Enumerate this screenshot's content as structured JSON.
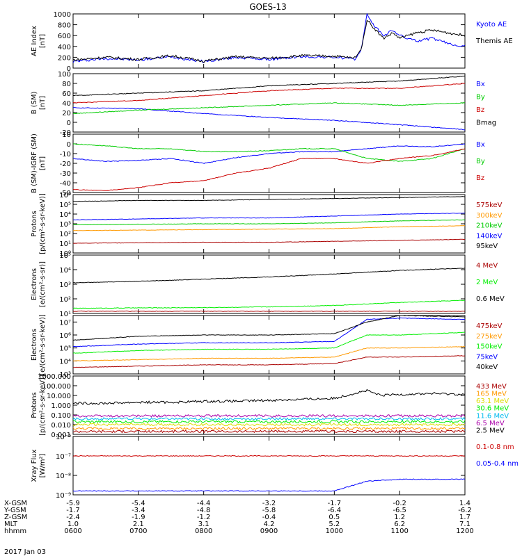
{
  "title": "GOES-13",
  "date_label": "2017 Jan 03",
  "colors": {
    "black": "#000000",
    "blue": "#0000ff",
    "green": "#00cc00",
    "red": "#cc0000",
    "orange": "#ff9900",
    "dark_red": "#aa0000",
    "yellow": "#dddd00",
    "cyan": "#00bbee",
    "light_green": "#00ee00",
    "purple": "#aa00aa"
  },
  "time_axis": {
    "row_labels": [
      "X-GSM",
      "Y-GSM",
      "Z-GSM",
      "MLT",
      "hhmm"
    ],
    "columns": [
      {
        "hhmm": "0600",
        "X-GSM": "-5.9",
        "Y-GSM": "-1.7",
        "Z-GSM": "-2.4",
        "MLT": "1.0"
      },
      {
        "hhmm": "0700",
        "X-GSM": "-5.4",
        "Y-GSM": "-3.4",
        "Z-GSM": "-1.9",
        "MLT": "2.1"
      },
      {
        "hhmm": "0800",
        "X-GSM": "-4.4",
        "Y-GSM": "-4.8",
        "Z-GSM": "-1.2",
        "MLT": "3.1"
      },
      {
        "hhmm": "0900",
        "X-GSM": "-3.2",
        "Y-GSM": "-5.8",
        "Z-GSM": "-0.4",
        "MLT": "4.2"
      },
      {
        "hhmm": "1000",
        "X-GSM": "-1.7",
        "Y-GSM": "-6.4",
        "Z-GSM": "0.5",
        "MLT": "5.2"
      },
      {
        "hhmm": "1100",
        "X-GSM": "-0.2",
        "Y-GSM": "-6.5",
        "Z-GSM": "1.2",
        "MLT": "6.2"
      },
      {
        "hhmm": "1200",
        "X-GSM": "1.4",
        "Y-GSM": "-6.2",
        "Z-GSM": "1.7",
        "MLT": "7.1"
      }
    ]
  },
  "chart_data": [
    {
      "type": "line",
      "id": "ae",
      "ylabel": "AE Index\n[nT]",
      "yscale": "linear",
      "ylim": [
        0,
        1000
      ],
      "yticks": [
        0,
        200,
        400,
        600,
        800,
        1000
      ],
      "ytick_labels": [
        "0",
        "200",
        "400",
        "600",
        "800",
        "1000"
      ],
      "series": [
        {
          "name": "Kyoto AE",
          "color": "blue",
          "x": [
            6.0,
            6.5,
            7.0,
            7.5,
            8.0,
            8.5,
            9.0,
            9.5,
            10.0,
            10.2,
            10.3,
            10.4,
            10.45,
            10.5,
            10.6,
            10.75,
            10.9,
            11.0,
            11.25,
            11.5,
            11.75,
            12.0
          ],
          "y": [
            120,
            180,
            150,
            210,
            120,
            200,
            160,
            210,
            200,
            180,
            150,
            300,
            600,
            1000,
            800,
            600,
            700,
            600,
            500,
            550,
            450,
            400
          ]
        },
        {
          "name": "Themis AE",
          "color": "black",
          "x": [
            6.0,
            6.5,
            7.0,
            7.5,
            8.0,
            8.5,
            9.0,
            9.5,
            10.0,
            10.2,
            10.3,
            10.4,
            10.45,
            10.5,
            10.6,
            10.75,
            10.9,
            11.0,
            11.25,
            11.5,
            11.75,
            12.0
          ],
          "y": [
            150,
            200,
            160,
            230,
            130,
            210,
            180,
            230,
            220,
            200,
            180,
            320,
            550,
            900,
            750,
            550,
            650,
            550,
            650,
            700,
            650,
            600
          ]
        }
      ]
    },
    {
      "type": "line",
      "id": "bsm",
      "ylabel": "B (SM)\n[nT]",
      "yscale": "linear",
      "ylim": [
        -20,
        100
      ],
      "yticks": [
        -20,
        0,
        20,
        40,
        60,
        80,
        100
      ],
      "ytick_labels": [
        "-20",
        "0",
        "20",
        "40",
        "60",
        "80",
        "100"
      ],
      "series": [
        {
          "name": "Bx",
          "color": "blue",
          "x": [
            6,
            7,
            8,
            9,
            10,
            11,
            12
          ],
          "y": [
            30,
            28,
            18,
            10,
            4,
            -5,
            -15
          ]
        },
        {
          "name": "By",
          "color": "green",
          "x": [
            6,
            7,
            8,
            9,
            10,
            11,
            12
          ],
          "y": [
            18,
            25,
            30,
            35,
            40,
            35,
            40
          ]
        },
        {
          "name": "Bz",
          "color": "red",
          "x": [
            6,
            7,
            8,
            9,
            10,
            11,
            12
          ],
          "y": [
            40,
            45,
            55,
            65,
            70,
            70,
            80
          ]
        },
        {
          "name": "Bmag",
          "color": "black",
          "x": [
            6,
            7,
            8,
            9,
            10,
            11,
            12
          ],
          "y": [
            55,
            60,
            65,
            75,
            80,
            85,
            95
          ]
        }
      ]
    },
    {
      "type": "line",
      "id": "bigrf",
      "ylabel": "B (SM)-IGRF (SM)\n[nT]",
      "yscale": "linear",
      "ylim": [
        -50,
        10
      ],
      "yticks": [
        -50,
        -40,
        -30,
        -20,
        -10,
        0,
        10
      ],
      "ytick_labels": [
        "-50",
        "-40",
        "-30",
        "-20",
        "-10",
        "0",
        "10"
      ],
      "series": [
        {
          "name": "Bx",
          "color": "blue",
          "x": [
            6,
            6.5,
            7,
            7.5,
            8,
            8.5,
            9,
            9.5,
            10,
            10.5,
            11,
            11.5,
            12
          ],
          "y": [
            -15,
            -18,
            -17,
            -15,
            -20,
            -14,
            -10,
            -8,
            -8,
            -5,
            -2,
            -3,
            0
          ]
        },
        {
          "name": "By",
          "color": "green",
          "x": [
            6,
            6.5,
            7,
            7.5,
            8,
            8.5,
            9,
            9.5,
            10,
            10.5,
            11,
            11.5,
            12
          ],
          "y": [
            0,
            -2,
            -5,
            -5,
            -8,
            -8,
            -7,
            -5,
            -5,
            -15,
            -18,
            -15,
            -5
          ]
        },
        {
          "name": "Bz",
          "color": "red",
          "x": [
            6,
            6.5,
            7,
            7.5,
            8,
            8.5,
            9,
            9.5,
            10,
            10.5,
            11,
            11.5,
            12
          ],
          "y": [
            -47,
            -48,
            -45,
            -40,
            -38,
            -30,
            -25,
            -15,
            -15,
            -20,
            -15,
            -12,
            -5
          ]
        }
      ]
    },
    {
      "type": "line",
      "id": "protons",
      "ylabel": "Protons\n[p/(cm²-s-sr-keV)]",
      "yscale": "log",
      "ylim": [
        0,
        6
      ],
      "ytick_labels": [
        "10⁰",
        "10¹",
        "10²",
        "10³",
        "10⁴",
        "10⁵",
        "10⁶"
      ],
      "series": [
        {
          "name": "575keV",
          "color": "dark_red",
          "x": [
            6,
            7,
            8,
            9,
            10,
            11,
            12
          ],
          "y": [
            1,
            1.05,
            1.1,
            1.1,
            1.2,
            1.3,
            1.4
          ]
        },
        {
          "name": "300keV",
          "color": "orange",
          "x": [
            6,
            7,
            8,
            9,
            10,
            11,
            12
          ],
          "y": [
            2.3,
            2.35,
            2.4,
            2.45,
            2.5,
            2.7,
            2.8
          ]
        },
        {
          "name": "210keV",
          "color": "green",
          "x": [
            6,
            7,
            8,
            9,
            10,
            11,
            12
          ],
          "y": [
            2.9,
            2.95,
            3,
            3,
            3.1,
            3.3,
            3.4
          ]
        },
        {
          "name": "140keV",
          "color": "blue",
          "x": [
            6,
            7,
            8,
            9,
            10,
            11,
            12
          ],
          "y": [
            3.4,
            3.5,
            3.6,
            3.6,
            3.8,
            4,
            4.1
          ]
        },
        {
          "name": "95keV",
          "color": "black",
          "x": [
            6,
            7,
            8,
            9,
            10,
            11,
            12
          ],
          "y": [
            5.3,
            5.4,
            5.4,
            5.5,
            5.6,
            5.7,
            5.8
          ]
        }
      ]
    },
    {
      "type": "line",
      "id": "electrons1",
      "ylabel": "Electrons\n[e/(cm²-s-sr)]",
      "yscale": "log",
      "ylim": [
        1,
        5
      ],
      "ytick_labels": [
        "10¹",
        "10²",
        "10³",
        "10⁴",
        "10⁵"
      ],
      "series": [
        {
          "name": "4 MeV",
          "color": "dark_red",
          "x": [
            6,
            7,
            8,
            9,
            10,
            11,
            12
          ],
          "y": [
            1.15,
            1.15,
            1.15,
            1.15,
            1.15,
            1.15,
            1.15
          ]
        },
        {
          "name": "2 MeV",
          "color": "light_green",
          "x": [
            6,
            7,
            8,
            9,
            10,
            11,
            12
          ],
          "y": [
            1.35,
            1.38,
            1.4,
            1.45,
            1.55,
            1.75,
            1.9
          ]
        },
        {
          "name": "0.6 MeV",
          "color": "black",
          "x": [
            6,
            7,
            8,
            9,
            10,
            11,
            12
          ],
          "y": [
            3.1,
            3.2,
            3.35,
            3.5,
            3.7,
            3.95,
            4.1
          ]
        }
      ]
    },
    {
      "type": "line",
      "id": "electrons2",
      "ylabel": "Electrons\n[e/(cm²-s-sr-keV)]",
      "yscale": "log",
      "ylim": [
        3,
        7.5
      ],
      "ytick_labels": [
        "10³",
        "10⁴",
        "10⁵",
        "10⁶",
        "10⁷"
      ],
      "series": [
        {
          "name": "475keV",
          "color": "dark_red",
          "x": [
            6,
            7,
            8,
            9,
            10,
            10.5,
            11,
            12
          ],
          "y": [
            3.5,
            3.6,
            3.7,
            3.7,
            3.8,
            4.3,
            4.3,
            4.4
          ]
        },
        {
          "name": "275keV",
          "color": "orange",
          "x": [
            6,
            7,
            8,
            9,
            10,
            10.5,
            11,
            12
          ],
          "y": [
            4,
            4.1,
            4.2,
            4.2,
            4.3,
            5,
            5,
            5.1
          ]
        },
        {
          "name": "150keV",
          "color": "light_green",
          "x": [
            6,
            7,
            8,
            9,
            10,
            10.5,
            11,
            12
          ],
          "y": [
            4.6,
            4.8,
            4.9,
            4.9,
            5,
            6,
            6,
            6.2
          ]
        },
        {
          "name": "75keV",
          "color": "blue",
          "x": [
            6,
            7,
            8,
            9,
            10,
            10.5,
            11,
            12
          ],
          "y": [
            5.1,
            5.3,
            5.4,
            5.4,
            5.5,
            7.2,
            7.3,
            7.2
          ]
        },
        {
          "name": "40keV",
          "color": "black",
          "x": [
            6,
            7,
            8,
            9,
            10,
            10.5,
            11,
            12
          ],
          "y": [
            5.6,
            5.9,
            6,
            6,
            6.1,
            7,
            7.5,
            7.4
          ]
        }
      ]
    },
    {
      "type": "line",
      "id": "protons_hi",
      "ylabel": "Protons\n[p/(cm²-s-sr-keV)]",
      "yscale": "log",
      "ylim": [
        -3,
        3
      ],
      "ytick_labels": [
        "0.001",
        "0.010",
        "0.100",
        "1.000",
        "10.000",
        "100.000",
        "1000.000"
      ],
      "series": [
        {
          "name": "433 MeV",
          "color": "dark_red",
          "x": [
            6,
            12
          ],
          "y": [
            -2.7,
            -2.7
          ]
        },
        {
          "name": "165 MeV",
          "color": "orange",
          "x": [
            6,
            12
          ],
          "y": [
            -2.4,
            -2.4
          ]
        },
        {
          "name": "63.1 MeV",
          "color": "yellow",
          "x": [
            6,
            12
          ],
          "y": [
            -2,
            -2
          ]
        },
        {
          "name": "30.6 MeV",
          "color": "light_green",
          "x": [
            6,
            12
          ],
          "y": [
            -1.7,
            -1.7
          ]
        },
        {
          "name": "11.6 MeV",
          "color": "cyan",
          "x": [
            6,
            12
          ],
          "y": [
            -1.4,
            -1.4
          ]
        },
        {
          "name": "6.5 MeV",
          "color": "purple",
          "x": [
            6,
            12
          ],
          "y": [
            -1.1,
            -1.1
          ]
        },
        {
          "name": "2.5 MeV",
          "color": "black",
          "x": [
            6,
            6.5,
            7,
            7.5,
            8,
            8.5,
            9,
            9.5,
            10,
            10.3,
            10.5,
            10.7,
            11,
            11.5,
            12
          ],
          "y": [
            0.2,
            0.2,
            0.3,
            0.3,
            0.4,
            0.4,
            0.5,
            0.6,
            0.7,
            1.2,
            1.5,
            1.0,
            1.1,
            1.2,
            1.1
          ]
        }
      ]
    },
    {
      "type": "line",
      "id": "xray",
      "ylabel": "Xray Flux\n[W/m²]",
      "yscale": "log",
      "ylim": [
        -9,
        -6
      ],
      "ytick_labels": [
        "10⁻⁹",
        "10⁻⁸",
        "10⁻⁷",
        "10⁻⁶"
      ],
      "series": [
        {
          "name": "0.1-0.8 nm",
          "color": "red",
          "x": [
            6,
            12
          ],
          "y": [
            -7,
            -7
          ]
        },
        {
          "name": "0.05-0.4 nm",
          "color": "blue",
          "x": [
            6,
            7,
            8,
            9,
            10,
            10.5,
            11,
            12
          ],
          "y": [
            -8.8,
            -8.8,
            -8.8,
            -8.8,
            -8.8,
            -8.3,
            -8.2,
            -8.2
          ]
        }
      ]
    }
  ]
}
